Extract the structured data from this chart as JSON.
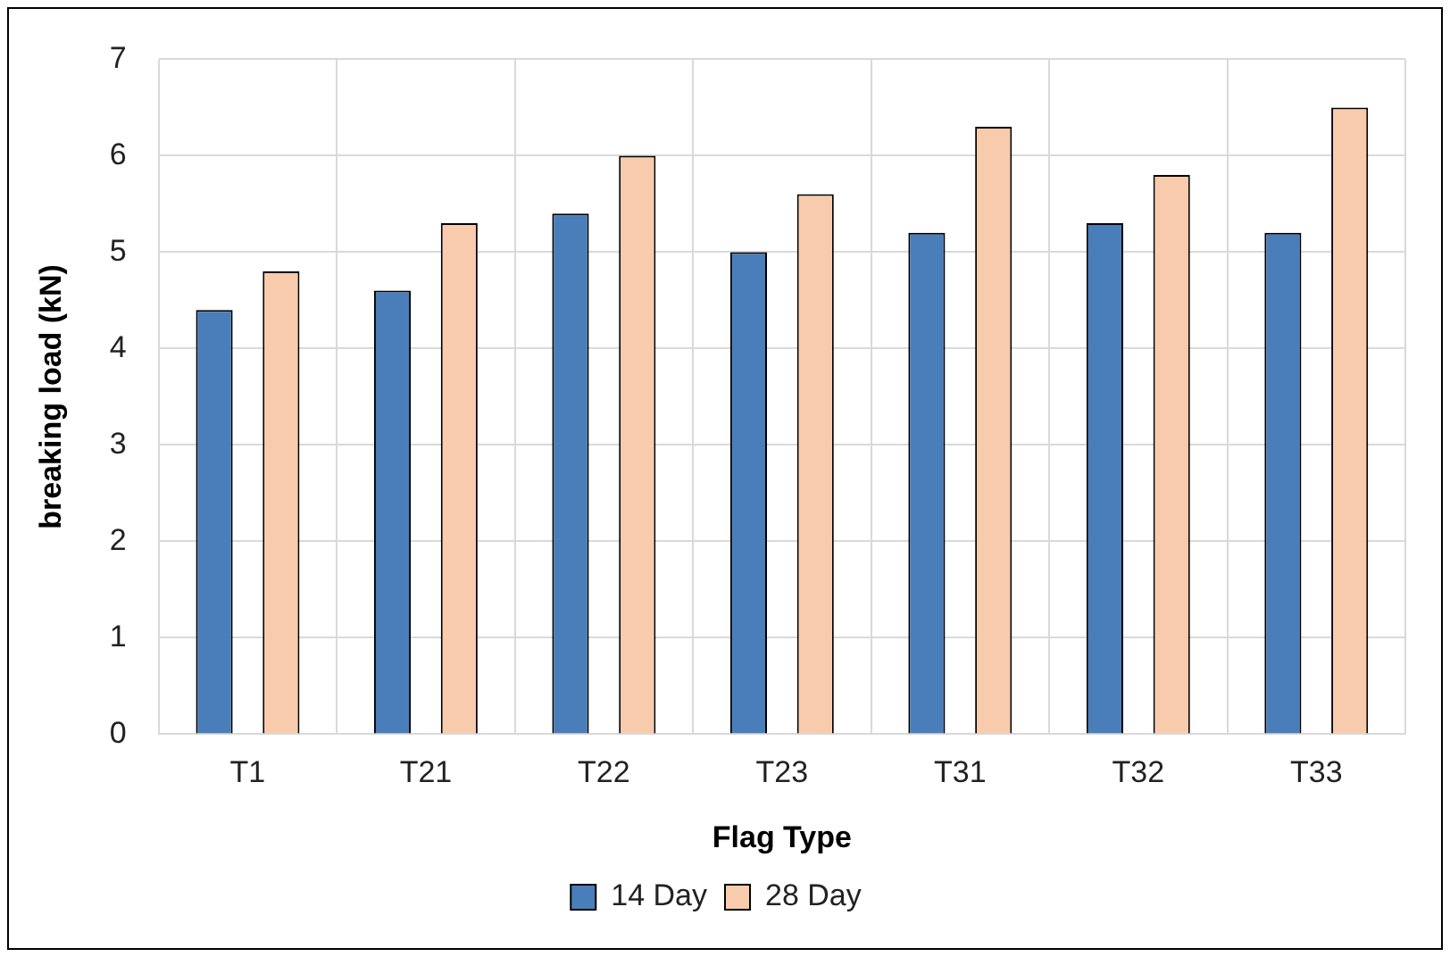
{
  "chart_data": {
    "type": "bar",
    "xlabel": "Flag Type",
    "ylabel": "breaking load (kN)",
    "categories": [
      "T1",
      "T21",
      "T22",
      "T23",
      "T31",
      "T32",
      "T33"
    ],
    "series": [
      {
        "name": "14 Day",
        "color": "#4a7ebb",
        "values": [
          4.4,
          4.6,
          5.4,
          5.0,
          5.2,
          5.3,
          5.2
        ]
      },
      {
        "name": "28 Day",
        "color": "#f8cbad",
        "values": [
          4.8,
          5.3,
          6.0,
          5.6,
          6.3,
          5.8,
          6.5
        ]
      }
    ],
    "ylim": [
      0,
      7
    ],
    "yticks": [
      0,
      1,
      2,
      3,
      4,
      5,
      6,
      7
    ],
    "grid": true,
    "legend": "bottom"
  }
}
